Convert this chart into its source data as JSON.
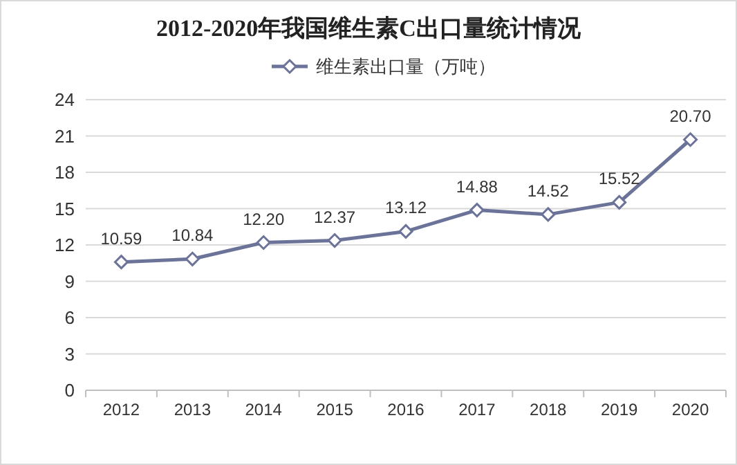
{
  "chart_data": {
    "type": "line",
    "title": "2012-2020年我国维生素C出口量统计情况",
    "categories": [
      "2012",
      "2013",
      "2014",
      "2015",
      "2016",
      "2017",
      "2018",
      "2019",
      "2020"
    ],
    "series": [
      {
        "name": "维生素出口量（万吨）",
        "color": "#6b7399",
        "values": [
          10.59,
          10.84,
          12.2,
          12.37,
          13.12,
          14.88,
          14.52,
          15.52,
          20.7
        ],
        "value_labels": [
          "10.59",
          "10.84",
          "12.20",
          "12.37",
          "13.12",
          "14.88",
          "14.52",
          "15.52",
          "20.70"
        ]
      }
    ],
    "ylim": [
      0,
      24
    ],
    "yticks": [
      0,
      3,
      6,
      9,
      12,
      15,
      18,
      21,
      24
    ],
    "grid": "y",
    "legend": "top",
    "marker": "diamond",
    "line_style": "solid"
  }
}
